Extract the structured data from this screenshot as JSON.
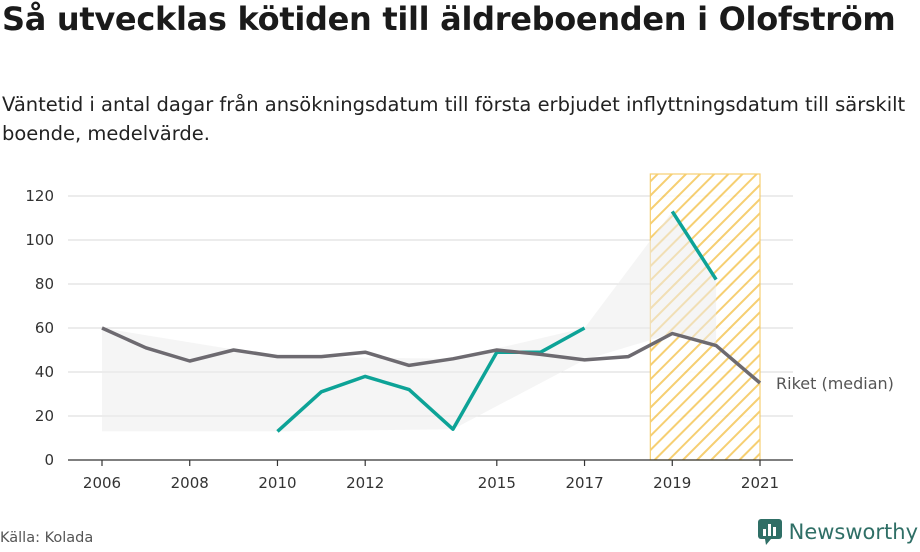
{
  "title": "Så utvecklas kötiden till äldreboenden i Olofström",
  "subtitle": "Väntetid i antal dagar från ansökningsdatum till första erbjudet inflyttningsdatum till särskilt boende, medelvärde.",
  "source": "Källa: Kolada",
  "brand": {
    "name": "Newsworthy"
  },
  "colors": {
    "municipality": "#0da397",
    "national": "#6d6a70",
    "highlight": "#f5c75a",
    "grid": "#d9d9d9"
  },
  "chart_data": {
    "type": "line",
    "x_ticks": [
      2006,
      2008,
      2010,
      2012,
      2015,
      2017,
      2019,
      2021
    ],
    "y_ticks": [
      0,
      20,
      40,
      60,
      80,
      100,
      120
    ],
    "xlim": [
      2006,
      2021
    ],
    "ylim": [
      0,
      120
    ],
    "grid": true,
    "highlight_range": [
      2018.5,
      2021
    ],
    "series": [
      {
        "name": "",
        "color": "#0da397",
        "points": [
          [
            2010,
            13
          ],
          [
            2011,
            31
          ],
          [
            2012,
            38
          ],
          [
            2013,
            32
          ],
          [
            2014,
            14
          ],
          [
            2015,
            49
          ],
          [
            2016,
            49
          ],
          [
            2017,
            60
          ],
          [
            2018,
            null
          ],
          [
            2019,
            113
          ],
          [
            2020,
            82
          ]
        ]
      },
      {
        "name": "Riket (median)",
        "color": "#6d6a70",
        "points": [
          [
            2006,
            60
          ],
          [
            2007,
            51
          ],
          [
            2008,
            45
          ],
          [
            2009,
            50
          ],
          [
            2010,
            47
          ],
          [
            2011,
            47
          ],
          [
            2012,
            49
          ],
          [
            2013,
            43
          ],
          [
            2014,
            46
          ],
          [
            2015,
            50
          ],
          [
            2016,
            48
          ],
          [
            2017,
            45.5
          ],
          [
            2018,
            47
          ],
          [
            2019,
            57.5
          ],
          [
            2020,
            52
          ],
          [
            2021,
            35
          ]
        ]
      }
    ],
    "range_band": {
      "points": [
        [
          2006,
          13,
          60
        ],
        [
          2010,
          13,
          47
        ],
        [
          2014,
          14,
          46
        ],
        [
          2017,
          45.5,
          60
        ],
        [
          2019,
          57.5,
          113
        ],
        [
          2020,
          52,
          82
        ]
      ]
    }
  }
}
